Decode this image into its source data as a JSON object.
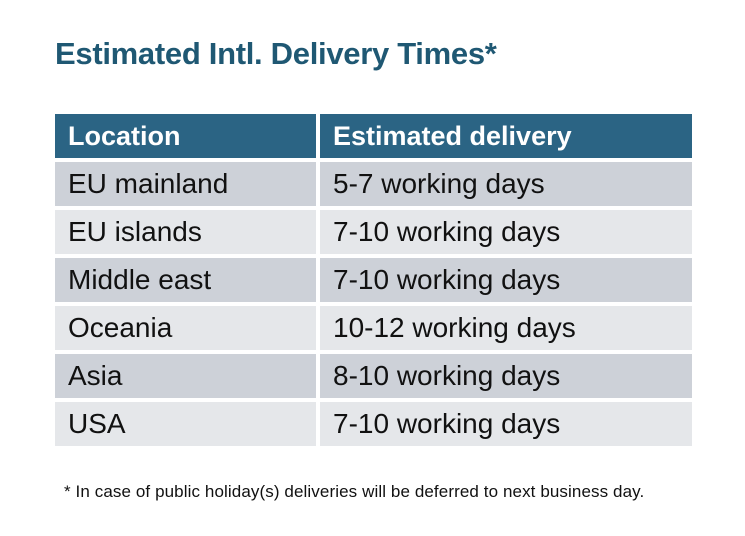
{
  "page": {
    "title": "Estimated Intl. Delivery Times*",
    "footnote": "* In case of public holiday(s) deliveries will be deferred to next business day."
  },
  "table": {
    "columns": [
      "Location",
      "Estimated delivery"
    ],
    "rows": [
      {
        "location": "EU mainland",
        "delivery": "5-7 working days"
      },
      {
        "location": "EU islands",
        "delivery": "7-10 working days"
      },
      {
        "location": "Middle east",
        "delivery": "7-10 working days"
      },
      {
        "location": "Oceania",
        "delivery": "10-12 working days"
      },
      {
        "location": "Asia",
        "delivery": "8-10 working days"
      },
      {
        "location": "USA",
        "delivery": "7-10 working days"
      }
    ]
  },
  "colors": {
    "background": "#ffffff",
    "title_text": "#1f5873",
    "header_bg": "#2b6484",
    "header_text": "#ffffff",
    "row_odd_bg": "#cdd1d8",
    "row_even_bg": "#e5e7ea",
    "body_text": "#111111"
  }
}
